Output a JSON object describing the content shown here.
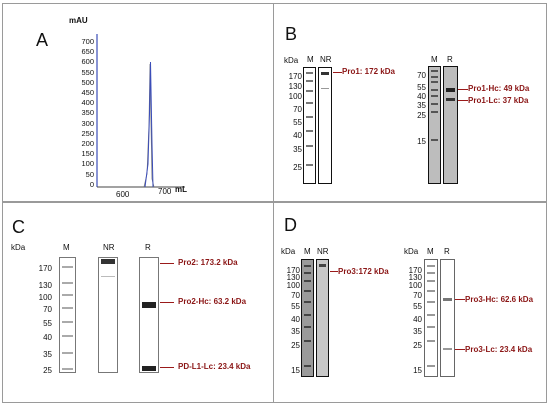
{
  "panels": {
    "A": {
      "letter": "A",
      "y_unit": "mAU",
      "x_unit": "mL",
      "y_ticks": [
        "700",
        "650",
        "600",
        "550",
        "500",
        "450",
        "400",
        "350",
        "300",
        "250",
        "200",
        "150",
        "100",
        "50",
        "0"
      ],
      "x_ticks": [
        "600",
        "700"
      ],
      "peak_color": "#3b4db8"
    },
    "B": {
      "letter": "B",
      "ladder_unit": "kDa",
      "left_ladder": [
        "170",
        "130",
        "100",
        "70",
        "55",
        "40",
        "35",
        "25"
      ],
      "right_ladder": [
        "70",
        "55",
        "40",
        "35",
        "25",
        "15"
      ],
      "lane_labels_left": [
        "M",
        "NR"
      ],
      "lane_labels_right": [
        "M",
        "R"
      ],
      "annotations": [
        "Pro1: 172 kDa",
        "Pro1-Hc: 49 kDa",
        "Pro1-Lc: 37 kDa"
      ]
    },
    "C": {
      "letter": "C",
      "ladder_unit": "kDa",
      "ladder": [
        "170",
        "130",
        "100",
        "70",
        "55",
        "40",
        "35",
        "25"
      ],
      "lane_labels": [
        "M",
        "NR",
        "R"
      ],
      "annotations": [
        "Pro2: 173.2 kDa",
        "Pro2-Hc: 63.2 kDa",
        "PD-L1-Lc: 23.4 kDa"
      ]
    },
    "D": {
      "letter": "D",
      "ladder_unit": "kDa",
      "left_ladder": [
        "170",
        "130",
        "100",
        "70",
        "55",
        "40",
        "35",
        "25",
        "15"
      ],
      "right_ladder": [
        "170",
        "130",
        "100",
        "70",
        "55",
        "40",
        "35",
        "25",
        "15"
      ],
      "lane_labels_left": [
        "M",
        "NR"
      ],
      "lane_labels_right": [
        "M",
        "R"
      ],
      "annotations": [
        "Pro3:172 kDa",
        "Pro3-Hc: 62.6 kDa",
        "Pro3-Lc: 23.4 kDa"
      ]
    }
  },
  "colors": {
    "annotation": "#8b1616",
    "border": "#9a9a9a"
  }
}
